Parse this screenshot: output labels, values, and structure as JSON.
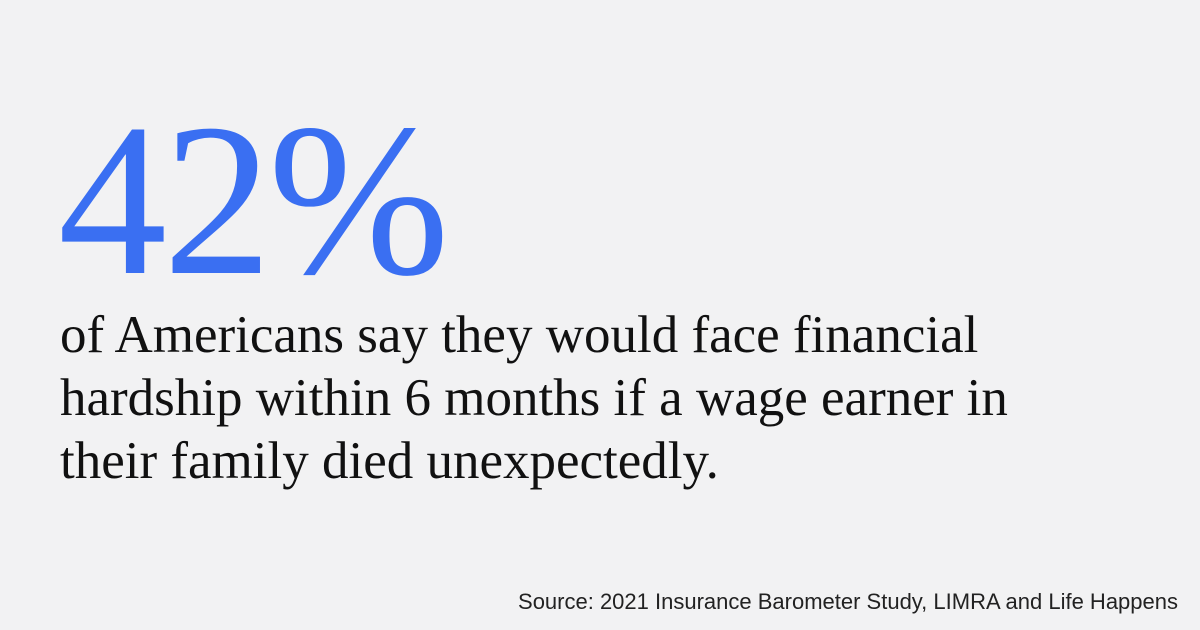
{
  "statistic": {
    "value": "42%",
    "color": "#3a6ff2"
  },
  "statement": {
    "lines": [
      "of Americans say they would face financial",
      "hardship within 6 months if a wage earner in",
      "their family died unexpectedly."
    ]
  },
  "source": {
    "text": "Source: 2021 Insurance Barometer Study, LIMRA and Life Happens"
  }
}
